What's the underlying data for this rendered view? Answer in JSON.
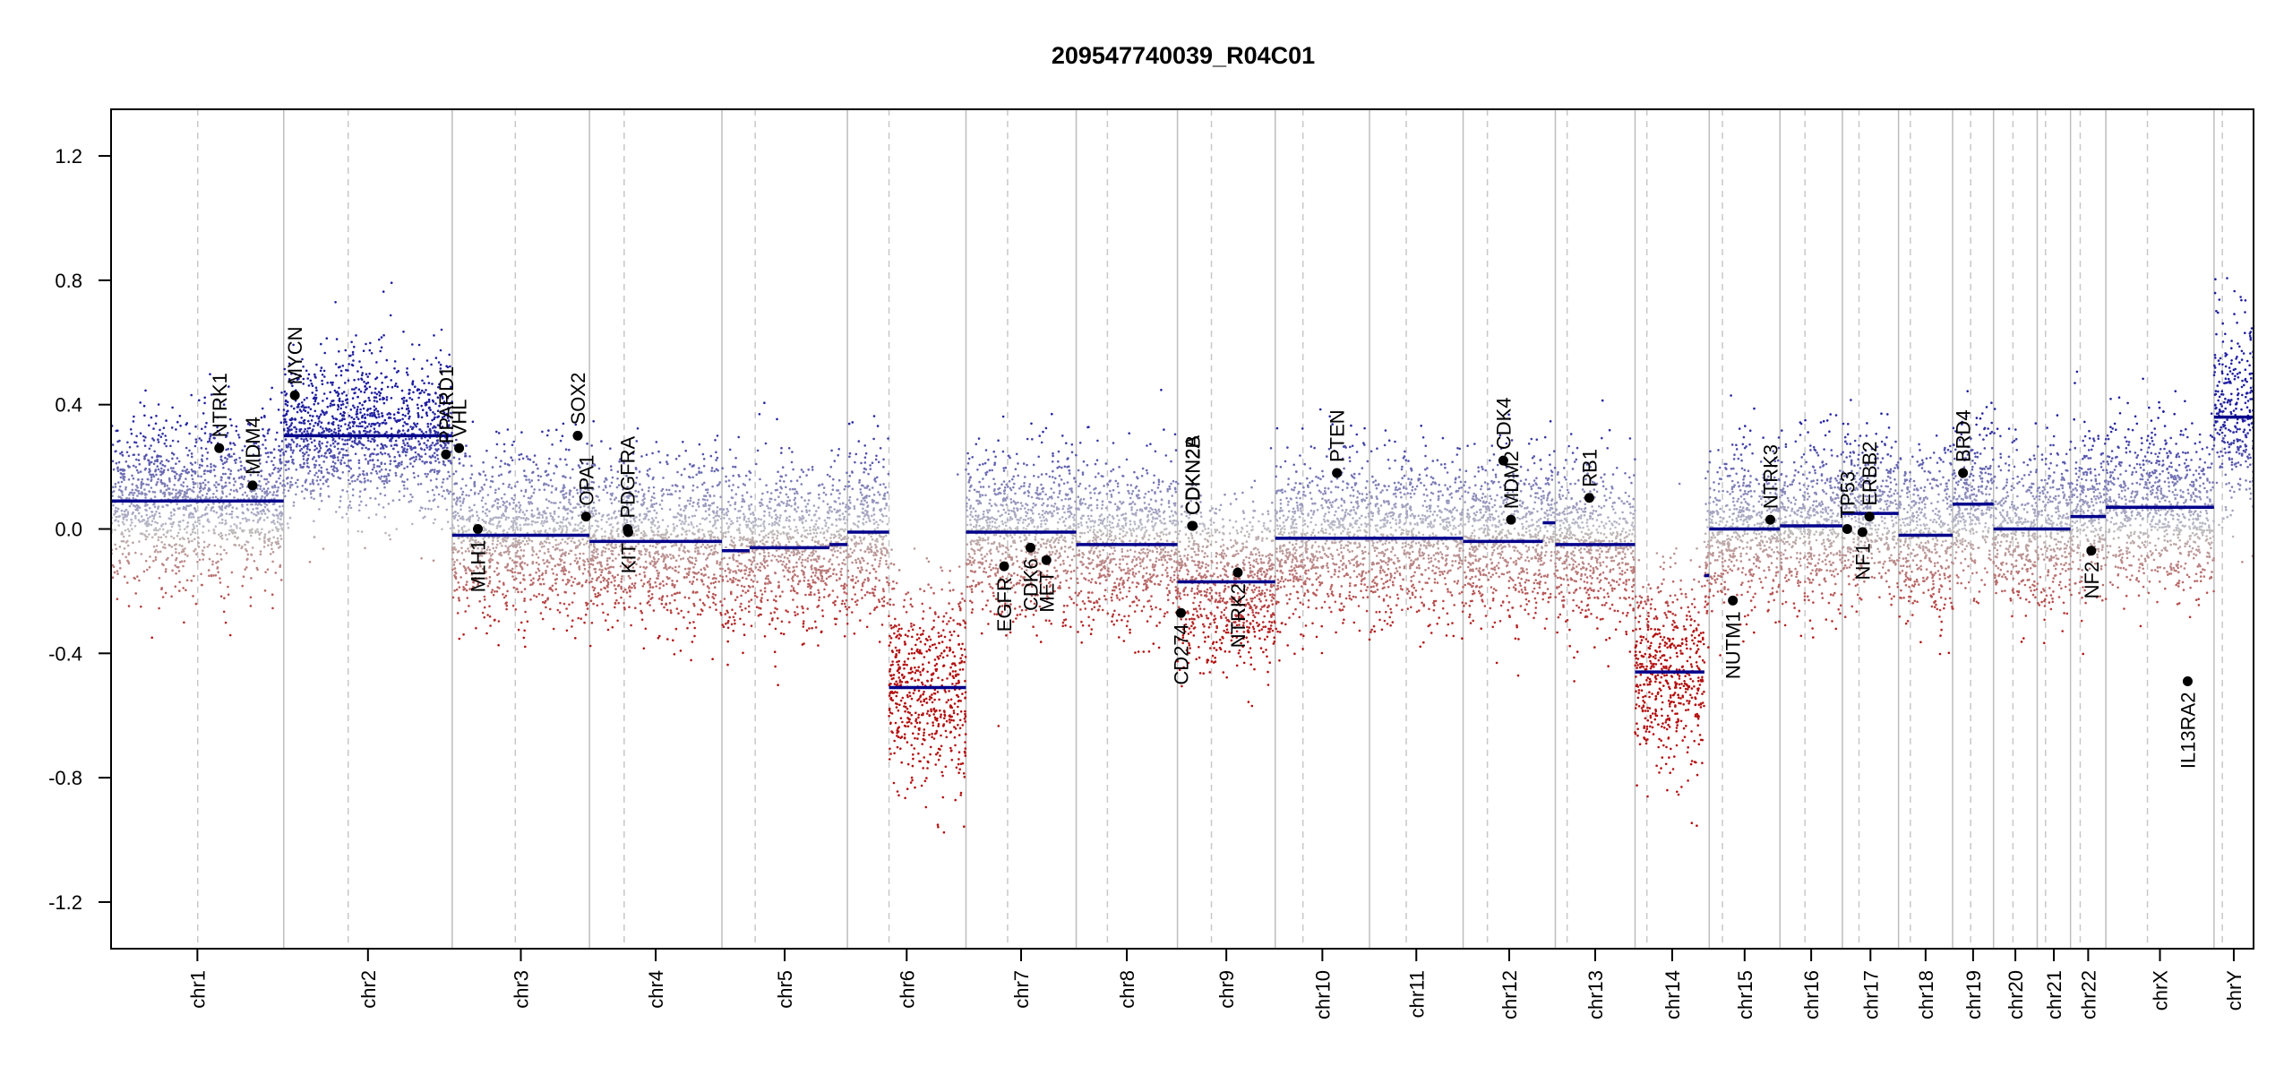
{
  "chart_data": {
    "type": "scatter",
    "title": "209547740039_R04C01",
    "xlabel": "",
    "ylabel": "",
    "ylim": [
      -1.35,
      1.35
    ],
    "yticks": [
      -1.2,
      -0.8,
      -0.4,
      0.0,
      0.4,
      0.8,
      1.2
    ],
    "ytick_labels": [
      "-1.2",
      "-0.8",
      "-0.4",
      "0.0",
      "0.4",
      "0.8",
      "1.2"
    ],
    "grid": false,
    "colors": {
      "gain": "#1f1f9c",
      "loss": "#b01010",
      "neutral": "#b8b8b8",
      "segment": "#00008b",
      "boundary": "#bdbdbd",
      "centromere": "#c8c8c8",
      "gene_point": "#000000"
    },
    "chromosomes": [
      {
        "name": "chr1",
        "length": 249
      },
      {
        "name": "chr2",
        "length": 243
      },
      {
        "name": "chr3",
        "length": 198
      },
      {
        "name": "chr4",
        "length": 191
      },
      {
        "name": "chr5",
        "length": 181
      },
      {
        "name": "chr6",
        "length": 171
      },
      {
        "name": "chr7",
        "length": 159
      },
      {
        "name": "chr8",
        "length": 146
      },
      {
        "name": "chr9",
        "length": 141
      },
      {
        "name": "chr10",
        "length": 136
      },
      {
        "name": "chr11",
        "length": 135
      },
      {
        "name": "chr12",
        "length": 133
      },
      {
        "name": "chr13",
        "length": 115
      },
      {
        "name": "chr14",
        "length": 107
      },
      {
        "name": "chr15",
        "length": 102
      },
      {
        "name": "chr16",
        "length": 90
      },
      {
        "name": "chr17",
        "length": 81
      },
      {
        "name": "chr18",
        "length": 78
      },
      {
        "name": "chr19",
        "length": 59
      },
      {
        "name": "chr20",
        "length": 63
      },
      {
        "name": "chr21",
        "length": 48
      },
      {
        "name": "chr22",
        "length": 51
      },
      {
        "name": "chrX",
        "length": 156
      },
      {
        "name": "chrY",
        "length": 57
      }
    ],
    "centromeres": [
      125,
      93,
      91,
      50,
      48,
      60,
      60,
      45,
      49,
      40,
      53,
      35,
      17,
      17,
      19,
      36,
      24,
      17,
      26,
      28,
      12,
      14,
      60,
      12
    ],
    "segments": [
      {
        "chr": "chr1",
        "start": 0,
        "end": 249,
        "value": 0.09
      },
      {
        "chr": "chr2",
        "start": 0,
        "end": 243,
        "value": 0.3
      },
      {
        "chr": "chr3",
        "start": 0,
        "end": 198,
        "value": -0.02
      },
      {
        "chr": "chr4",
        "start": 0,
        "end": 191,
        "value": -0.04
      },
      {
        "chr": "chr5",
        "start": 0,
        "end": 40,
        "value": -0.07
      },
      {
        "chr": "chr5",
        "start": 40,
        "end": 155,
        "value": -0.06
      },
      {
        "chr": "chr5",
        "start": 155,
        "end": 181,
        "value": -0.05
      },
      {
        "chr": "chr6",
        "start": 0,
        "end": 60,
        "value": -0.01
      },
      {
        "chr": "chr6",
        "start": 60,
        "end": 171,
        "value": -0.51
      },
      {
        "chr": "chr7",
        "start": 0,
        "end": 159,
        "value": -0.01
      },
      {
        "chr": "chr8",
        "start": 0,
        "end": 146,
        "value": -0.05
      },
      {
        "chr": "chr9",
        "start": 0,
        "end": 141,
        "value": -0.17
      },
      {
        "chr": "chr10",
        "start": 0,
        "end": 136,
        "value": -0.03
      },
      {
        "chr": "chr11",
        "start": 0,
        "end": 135,
        "value": -0.03
      },
      {
        "chr": "chr12",
        "start": 0,
        "end": 115,
        "value": -0.04
      },
      {
        "chr": "chr12",
        "start": 115,
        "end": 133,
        "value": 0.02
      },
      {
        "chr": "chr13",
        "start": 0,
        "end": 115,
        "value": -0.05
      },
      {
        "chr": "chr14",
        "start": 0,
        "end": 100,
        "value": -0.46
      },
      {
        "chr": "chr14",
        "start": 100,
        "end": 107,
        "value": -0.15
      },
      {
        "chr": "chr15",
        "start": 0,
        "end": 102,
        "value": 0.0
      },
      {
        "chr": "chr16",
        "start": 0,
        "end": 90,
        "value": 0.01
      },
      {
        "chr": "chr17",
        "start": 0,
        "end": 81,
        "value": 0.05
      },
      {
        "chr": "chr18",
        "start": 0,
        "end": 78,
        "value": -0.02
      },
      {
        "chr": "chr19",
        "start": 0,
        "end": 59,
        "value": 0.08
      },
      {
        "chr": "chr20",
        "start": 0,
        "end": 63,
        "value": 0.0
      },
      {
        "chr": "chr21",
        "start": 0,
        "end": 48,
        "value": 0.0
      },
      {
        "chr": "chr22",
        "start": 0,
        "end": 51,
        "value": 0.04
      },
      {
        "chr": "chrX",
        "start": 0,
        "end": 156,
        "value": 0.07
      },
      {
        "chr": "chrY",
        "start": 0,
        "end": 57,
        "value": 0.36
      }
    ],
    "genes": [
      {
        "name": "NTRK1",
        "chr": "chr1",
        "pos": 156,
        "value": 0.26,
        "label_side": "above"
      },
      {
        "name": "MDM4",
        "chr": "chr1",
        "pos": 204,
        "value": 0.14,
        "label_side": "above"
      },
      {
        "name": "MYCN",
        "chr": "chr2",
        "pos": 16,
        "value": 0.43,
        "label_side": "above"
      },
      {
        "name": "PPARD1",
        "chr": "chr2",
        "pos": 234,
        "value": 0.24,
        "label_side": "above"
      },
      {
        "name": "VHL",
        "chr": "chr3",
        "pos": 10,
        "value": 0.26,
        "label_side": "above"
      },
      {
        "name": "MLH1",
        "chr": "chr3",
        "pos": 37,
        "value": 0.0,
        "label_side": "below"
      },
      {
        "name": "SOX2",
        "chr": "chr3",
        "pos": 181,
        "value": 0.3,
        "label_side": "above"
      },
      {
        "name": "OPA1",
        "chr": "chr3",
        "pos": 193,
        "value": 0.04,
        "label_side": "above"
      },
      {
        "name": "PDGFRA",
        "chr": "chr4",
        "pos": 55,
        "value": 0.0,
        "label_side": "above"
      },
      {
        "name": "KIT",
        "chr": "chr4",
        "pos": 56,
        "value": -0.01,
        "label_side": "below"
      },
      {
        "name": "EGFR",
        "chr": "chr7",
        "pos": 55,
        "value": -0.12,
        "label_side": "below"
      },
      {
        "name": "CDK6",
        "chr": "chr7",
        "pos": 93,
        "value": -0.06,
        "label_side": "below"
      },
      {
        "name": "MET",
        "chr": "chr7",
        "pos": 116,
        "value": -0.1,
        "label_side": "below"
      },
      {
        "name": "CD274",
        "chr": "chr9",
        "pos": 5,
        "value": -0.27,
        "label_side": "below"
      },
      {
        "name": "CDKN2A",
        "chr": "chr9",
        "pos": 21,
        "value": 0.01,
        "label_side": "above"
      },
      {
        "name": "CDKN2B",
        "chr": "chr9",
        "pos": 22,
        "value": 0.01,
        "label_side": "above"
      },
      {
        "name": "NTRK2",
        "chr": "chr9",
        "pos": 87,
        "value": -0.14,
        "label_side": "below"
      },
      {
        "name": "PTEN",
        "chr": "chr10",
        "pos": 89,
        "value": 0.18,
        "label_side": "above"
      },
      {
        "name": "CDK4",
        "chr": "chr12",
        "pos": 58,
        "value": 0.22,
        "label_side": "above"
      },
      {
        "name": "MDM2",
        "chr": "chr12",
        "pos": 69,
        "value": 0.03,
        "label_side": "above"
      },
      {
        "name": "RB1",
        "chr": "chr13",
        "pos": 49,
        "value": 0.1,
        "label_side": "above"
      },
      {
        "name": "NUTM1",
        "chr": "chr15",
        "pos": 34,
        "value": -0.23,
        "label_side": "below"
      },
      {
        "name": "NTRK3",
        "chr": "chr15",
        "pos": 88,
        "value": 0.03,
        "label_side": "above"
      },
      {
        "name": "TP53",
        "chr": "chr17",
        "pos": 7,
        "value": 0.0,
        "label_side": "above"
      },
      {
        "name": "NF1",
        "chr": "chr17",
        "pos": 29,
        "value": -0.01,
        "label_side": "below"
      },
      {
        "name": "ERBB2",
        "chr": "chr17",
        "pos": 39,
        "value": 0.04,
        "label_side": "above"
      },
      {
        "name": "BRD4",
        "chr": "chr19",
        "pos": 15,
        "value": 0.18,
        "label_side": "above"
      },
      {
        "name": "NF2",
        "chr": "chr22",
        "pos": 30,
        "value": -0.07,
        "label_side": "below"
      },
      {
        "name": "IL13RA2",
        "chr": "chrX",
        "pos": 118,
        "value": -0.49,
        "label_side": "below"
      }
    ]
  }
}
